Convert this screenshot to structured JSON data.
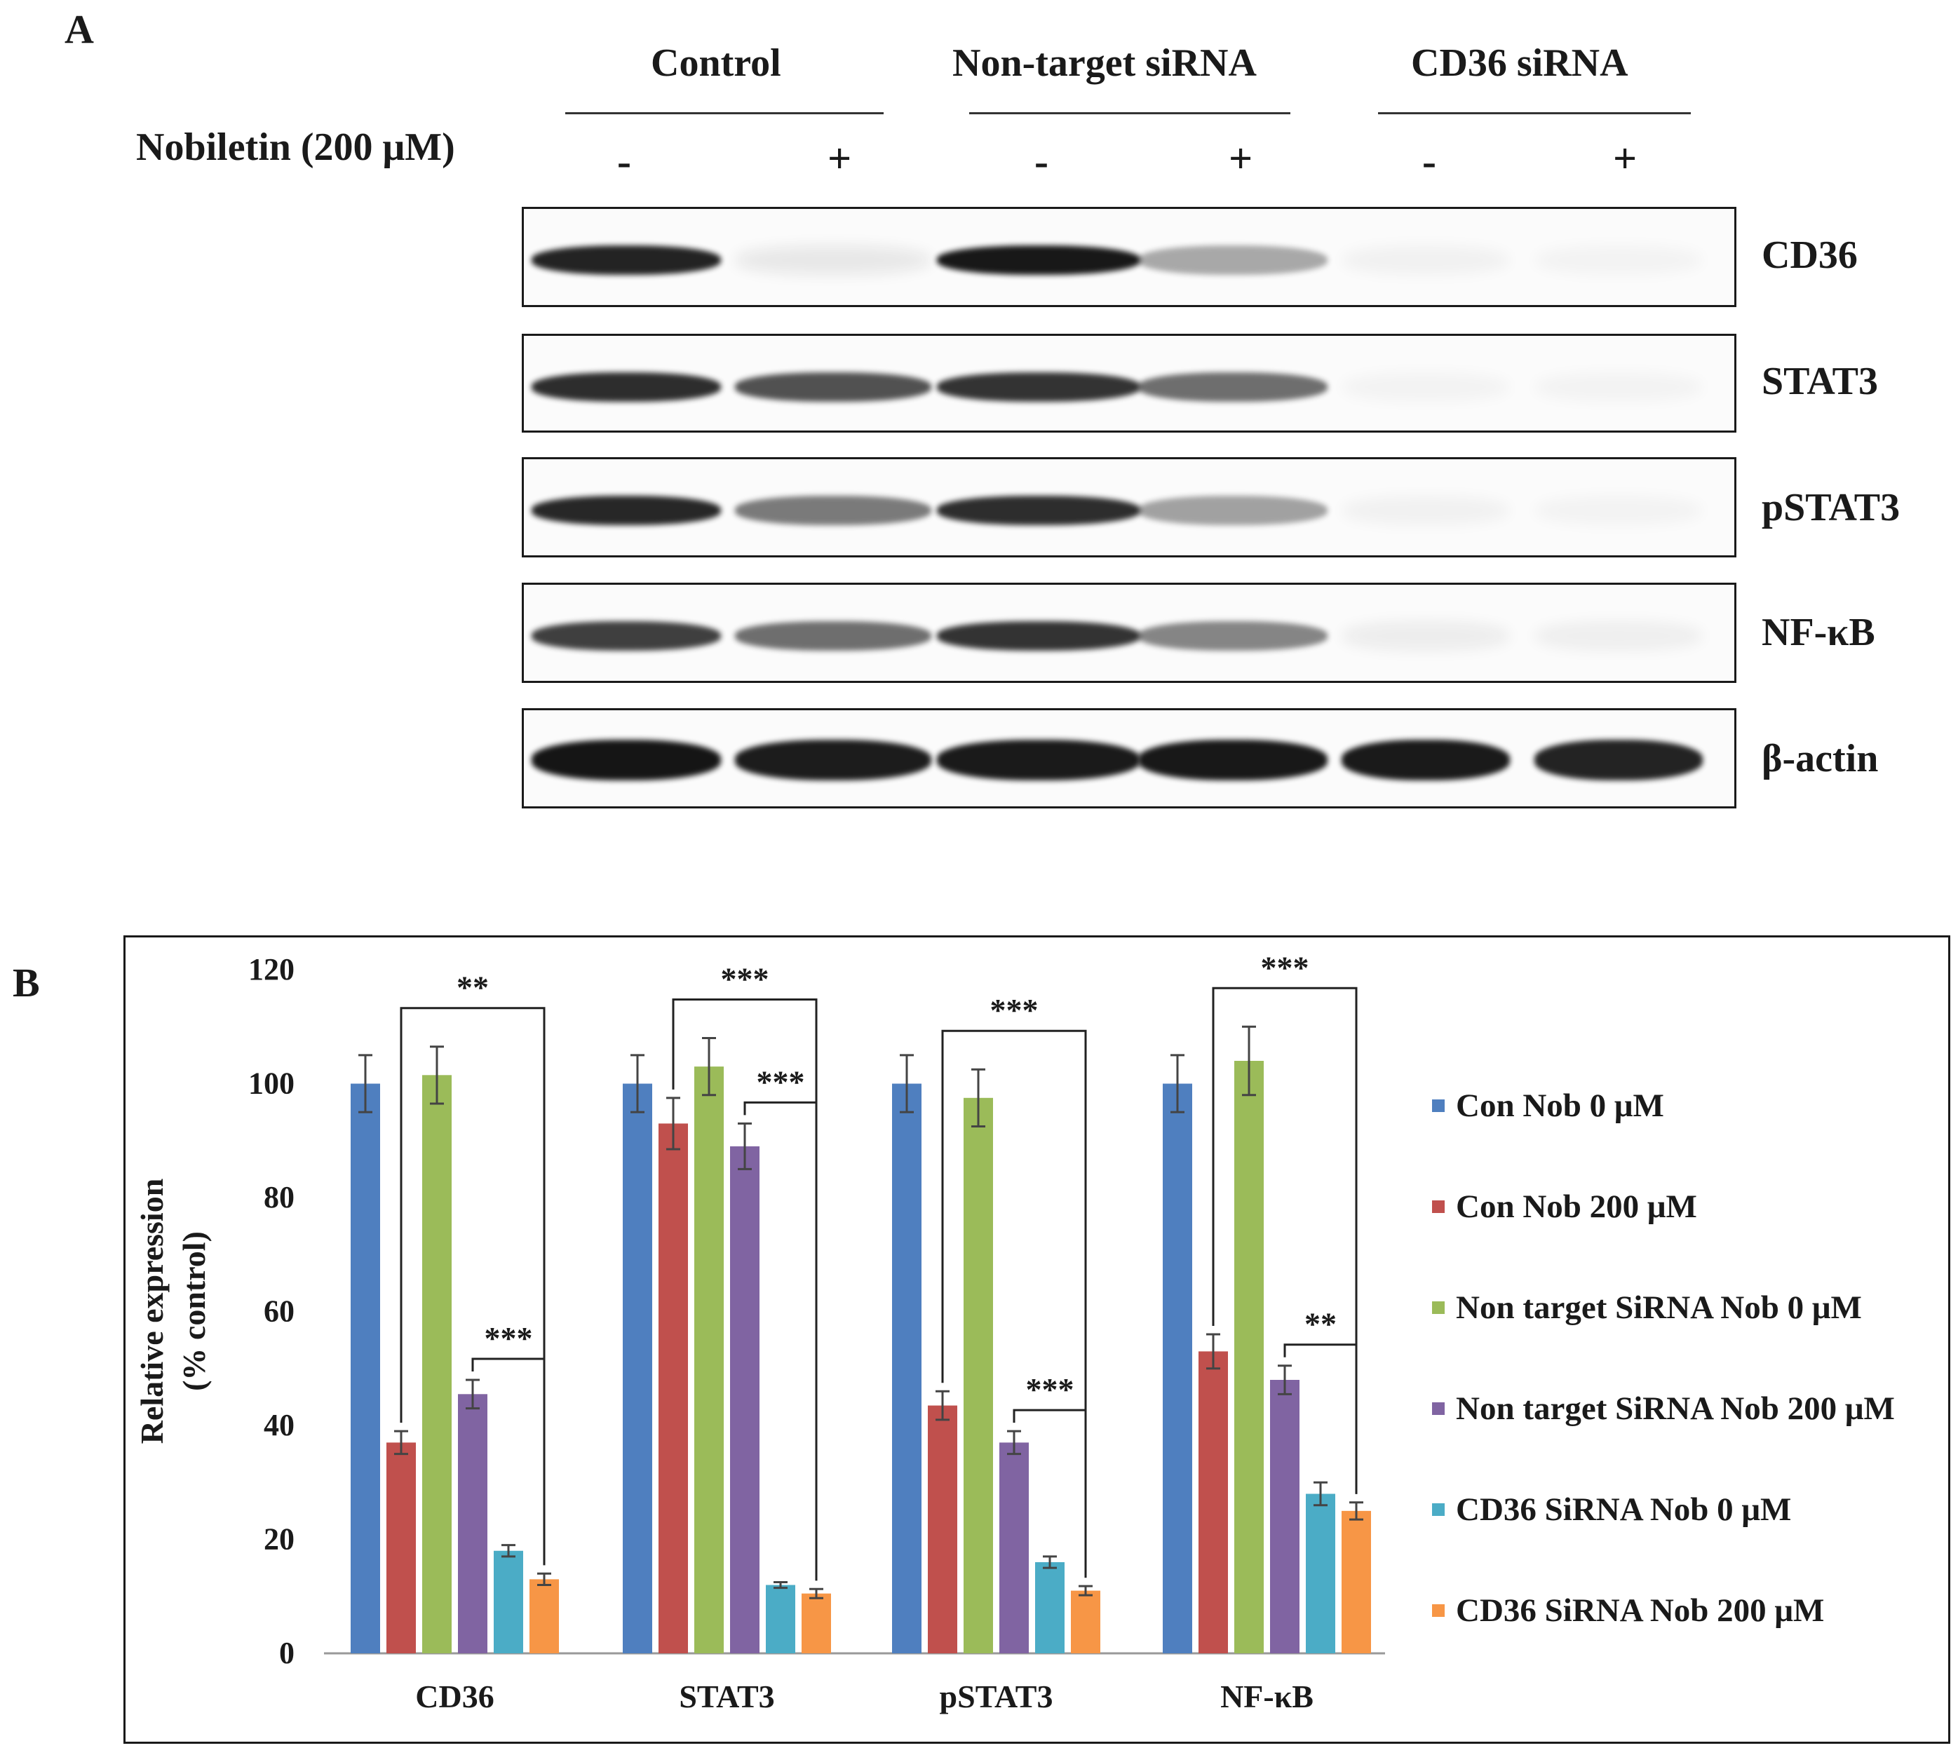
{
  "panel_a": {
    "letter": "A",
    "groups": [
      {
        "label": "Control"
      },
      {
        "label": "Non-target  siRNA"
      },
      {
        "label": "CD36 siRNA"
      }
    ],
    "treatment_label": "Nobiletin (200 μM)",
    "signs": [
      "-",
      "+",
      "-",
      "+",
      "-",
      "+"
    ],
    "proteins": [
      "CD36",
      "STAT3",
      "pSTAT3",
      "NF-κB",
      "β-actin"
    ],
    "band_intensity": [
      [
        0.92,
        0.08,
        0.97,
        0.35,
        0.04,
        0.03
      ],
      [
        0.88,
        0.72,
        0.85,
        0.6,
        0.03,
        0.03
      ],
      [
        0.9,
        0.55,
        0.88,
        0.38,
        0.04,
        0.03
      ],
      [
        0.8,
        0.6,
        0.85,
        0.5,
        0.06,
        0.05
      ],
      [
        0.98,
        0.95,
        0.96,
        0.97,
        0.96,
        0.92
      ]
    ]
  },
  "panel_b": {
    "letter": "B"
  },
  "chart_data": {
    "type": "bar",
    "title": "",
    "xlabel": "",
    "ylabel": "Relative  expression\n(% control)",
    "ylabel_lines": [
      "Relative  expression",
      "(% control)"
    ],
    "ylim": [
      0,
      120
    ],
    "yticks": [
      "0",
      "20",
      "40",
      "60",
      "80",
      "100",
      "120"
    ],
    "categories": [
      "CD36",
      "STAT3",
      "pSTAT3",
      "NF-κB"
    ],
    "series": [
      {
        "name": "Con Nob 0 μM",
        "color": "#4f7fbf",
        "values": [
          100,
          100,
          100,
          100
        ],
        "errors": [
          5,
          5,
          5,
          5
        ]
      },
      {
        "name": "Con Nob 200 μM",
        "color": "#c0504d",
        "values": [
          37,
          93,
          43.5,
          53
        ],
        "errors": [
          2,
          4.5,
          2.5,
          3
        ]
      },
      {
        "name": "Non target SiRNA Nob 0 μM",
        "color": "#9bbb59",
        "values": [
          101.5,
          103,
          97.5,
          104
        ],
        "errors": [
          5,
          5,
          5,
          6
        ]
      },
      {
        "name": "Non target SiRNA Nob 200 μM",
        "color": "#8064a2",
        "values": [
          45.5,
          89,
          37,
          48
        ],
        "errors": [
          2.5,
          4,
          2,
          2.5
        ]
      },
      {
        "name": "CD36 SiRNA Nob 0 μM",
        "color": "#4bacc6",
        "values": [
          18,
          12,
          16,
          28
        ],
        "errors": [
          1,
          0.5,
          1,
          2
        ]
      },
      {
        "name": "CD36 SiRNA Nob 200 μM",
        "color": "#f79646",
        "values": [
          13,
          10.5,
          11,
          25
        ],
        "errors": [
          1,
          0.8,
          0.8,
          1.5
        ]
      }
    ],
    "significance": [
      {
        "category": "CD36",
        "from_series": 1,
        "to_series": 5,
        "label": "**"
      },
      {
        "category": "CD36",
        "from_series": 3,
        "to_series": 5,
        "label": "***"
      },
      {
        "category": "STAT3",
        "from_series": 1,
        "to_series": 5,
        "label": "***"
      },
      {
        "category": "STAT3",
        "from_series": 3,
        "to_series": 5,
        "label": "***"
      },
      {
        "category": "pSTAT3",
        "from_series": 1,
        "to_series": 5,
        "label": "***"
      },
      {
        "category": "pSTAT3",
        "from_series": 3,
        "to_series": 5,
        "label": "***"
      },
      {
        "category": "NF-κB",
        "from_series": 1,
        "to_series": 5,
        "label": "***"
      },
      {
        "category": "NF-κB",
        "from_series": 3,
        "to_series": 5,
        "label": "**"
      }
    ],
    "grid": false,
    "legend_position": "right"
  }
}
